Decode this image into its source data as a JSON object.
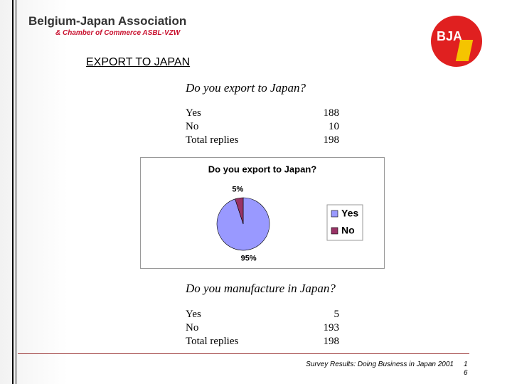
{
  "header": {
    "org": "Belgium-Japan Association",
    "suborg": "& Chamber of Commerce ASBL-VZW",
    "logo": "BJA",
    "title": "EXPORT TO JAPAN"
  },
  "export": {
    "question": "Do you export to Japan?",
    "rows": [
      [
        "Yes",
        "188"
      ],
      [
        "No",
        "10"
      ],
      [
        "Total replies",
        "198"
      ]
    ]
  },
  "chart_data": {
    "type": "pie",
    "title": "Do you export to Japan?",
    "categories": [
      "Yes",
      "No"
    ],
    "values": [
      95,
      5
    ],
    "value_labels": [
      "95%",
      "5%"
    ],
    "colors": [
      "#9999ff",
      "#993366"
    ],
    "legend": "right"
  },
  "manufacture": {
    "question": "Do you manufacture in Japan?",
    "rows": [
      [
        "Yes",
        "5"
      ],
      [
        "No",
        "193"
      ],
      [
        "Total replies",
        "198"
      ]
    ]
  },
  "footer": {
    "text": "Survey Results: Doing Business in Japan 2001",
    "page": "16"
  }
}
